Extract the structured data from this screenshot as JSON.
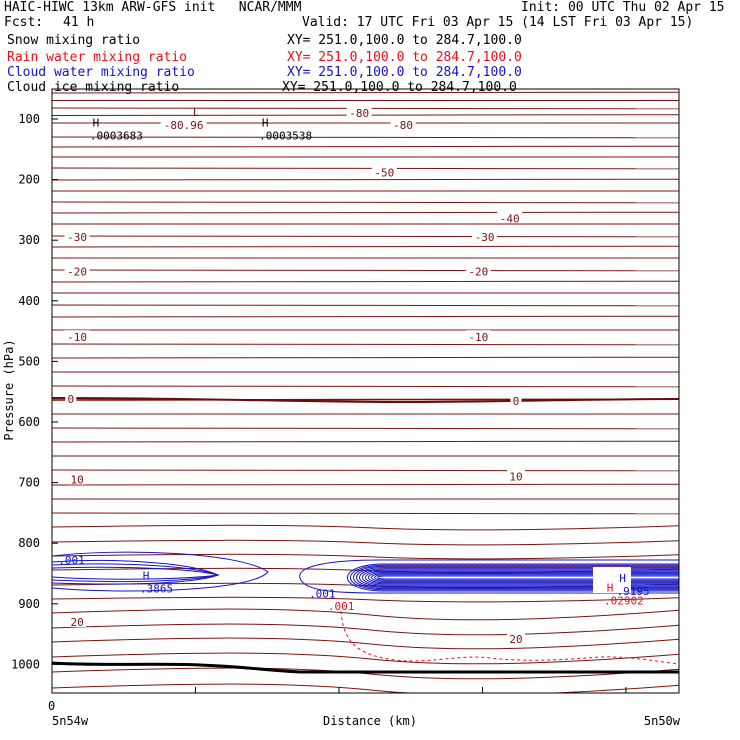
{
  "header": {
    "title": "HAIC-HIWC 13km ARW-GFS init   NCAR/MMM",
    "init": "Init: 00 UTC Thu 02 Apr 15",
    "fcst_label": "Fcst:",
    "fcst_value": "41 h",
    "valid": "Valid: 17 UTC Fri 03 Apr 15 (14 LST Fri 03 Apr 15)"
  },
  "fields": [
    {
      "name": "Snow mixing ratio",
      "xy": "XY= 251.0,100.0 to 284.7,100.0",
      "color": "#000000"
    },
    {
      "name": "Rain water mixing ratio",
      "xy": "XY= 251.0,100.0 to 284.7,100.0",
      "color": "#e8101b"
    },
    {
      "name": "Cloud water mixing ratio",
      "xy": "XY= 251.0,100.0 to 284.7,100.0",
      "color": "#1414c8"
    },
    {
      "name": "Cloud ice mixing ratio",
      "xy": "XY= 251.0,100.0 to 284.7,100.0",
      "color": "#000000"
    }
  ],
  "chart_data": {
    "type": "contour",
    "ylabel": "Pressure (hPa)",
    "xlabel": "Distance (km)",
    "x_left_tick": "0",
    "x_left_label": "5n54w",
    "x_right_label": "5n50w",
    "y_ticks": [
      100,
      200,
      300,
      400,
      500,
      600,
      700,
      800,
      900,
      1000
    ],
    "ylim": [
      1050,
      75
    ],
    "temperature_labels": [
      {
        "text": "-80",
        "p": 90,
        "pos": 0.49
      },
      {
        "text": "-80",
        "p": 110,
        "pos": 0.56
      },
      {
        "text": "-80.96",
        "p": 110,
        "pos": 0.21
      },
      {
        "text": "-50",
        "p": 188,
        "pos": 0.53
      },
      {
        "text": "-40",
        "p": 264,
        "pos": 0.73
      },
      {
        "text": "-30",
        "p": 295,
        "pos": 0.04
      },
      {
        "text": "-30",
        "p": 295,
        "pos": 0.69
      },
      {
        "text": "-20",
        "p": 352,
        "pos": 0.04
      },
      {
        "text": "-20",
        "p": 352,
        "pos": 0.68
      },
      {
        "text": "-10",
        "p": 460,
        "pos": 0.04
      },
      {
        "text": "-10",
        "p": 460,
        "pos": 0.68
      },
      {
        "text": "0",
        "p": 562,
        "pos": 0.03
      },
      {
        "text": "0",
        "p": 565,
        "pos": 0.74
      },
      {
        "text": "10",
        "p": 695,
        "pos": 0.04
      },
      {
        "text": "10",
        "p": 690,
        "pos": 0.74
      },
      {
        "text": "20",
        "p": 930,
        "pos": 0.04
      },
      {
        "text": "20",
        "p": 958,
        "pos": 0.74
      }
    ],
    "extrema": [
      {
        "kind": "L",
        "p": 95,
        "pos": 0.23,
        "color": "#7a1010"
      },
      {
        "kind": "H",
        "p": 112,
        "pos": 0.07,
        "color": "#000000",
        "value": ".0003683"
      },
      {
        "kind": "H",
        "p": 112,
        "pos": 0.34,
        "color": "#000000",
        "value": ".0003538"
      },
      {
        "kind": "H",
        "p": 860,
        "pos": 0.15,
        "color": "#1414c8",
        "value": ".3865"
      },
      {
        "kind": "H",
        "p": 864,
        "pos": 0.91,
        "color": "#1414c8",
        "value": ".9195"
      },
      {
        "kind": "H",
        "p": 880,
        "pos": 0.89,
        "color": "#e8101b",
        "value": ".02902"
      }
    ],
    "cloud_labels": [
      {
        "text": ".001",
        "p": 834,
        "pos": 0.01,
        "color": "#1414c8"
      },
      {
        "text": ".001",
        "p": 890,
        "pos": 0.41,
        "color": "#1414c8"
      },
      {
        "text": ".001",
        "p": 910,
        "pos": 0.44,
        "color": "#e8101b"
      }
    ]
  }
}
